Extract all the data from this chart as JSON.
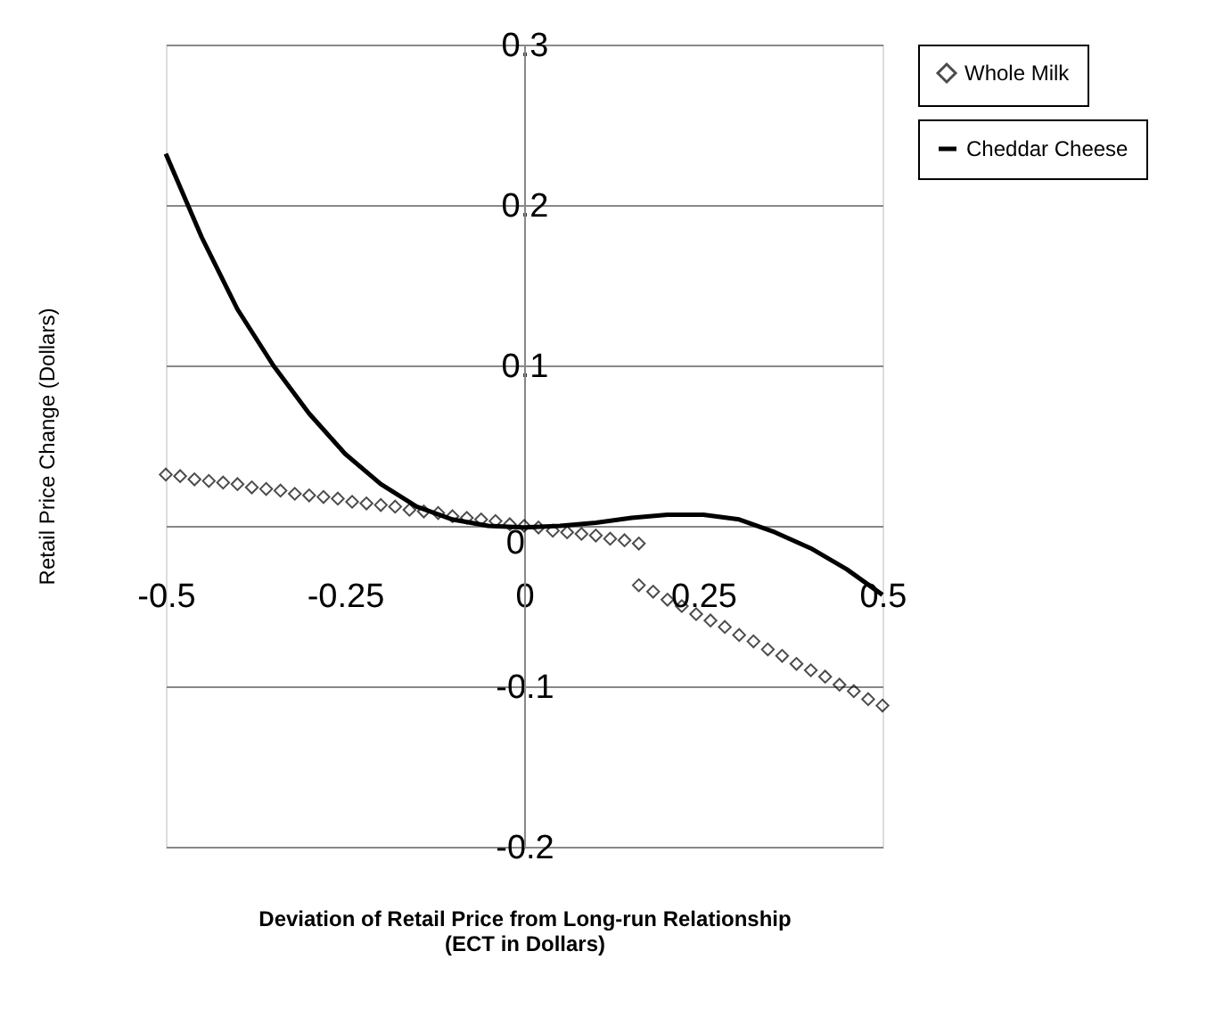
{
  "chart_data": {
    "type": "scatter",
    "xlabel": "Deviation of Retail Price from Long-run Relationship\n(ECT in Dollars)",
    "ylabel": "Retail Price Change (Dollars)",
    "xlim": [
      -0.5,
      0.5
    ],
    "xticks": [
      -0.5,
      -0.25,
      0,
      0.25,
      0.5
    ],
    "ylim": [
      -0.2,
      0.3
    ],
    "yticks": [
      -0.2,
      -0.1,
      0,
      0.1,
      0.2,
      0.3
    ],
    "grid": "y",
    "legend": "right",
    "series": [
      {
        "name": "Whole Milk",
        "marker": "diamond",
        "color": "#000000",
        "x": [
          -0.5,
          -0.48,
          -0.46,
          -0.44,
          -0.42,
          -0.4,
          -0.38,
          -0.36,
          -0.34,
          -0.32,
          -0.3,
          -0.28,
          -0.26,
          -0.24,
          -0.22,
          -0.2,
          -0.18,
          -0.16,
          -0.14,
          -0.12,
          -0.1,
          -0.08,
          -0.06,
          -0.04,
          -0.02,
          0,
          0.02,
          0.04,
          0.06,
          0.08,
          0.1,
          0.12,
          0.14,
          0.16,
          0.16,
          0.18,
          0.2,
          0.22,
          0.24,
          0.26,
          0.28,
          0.3,
          0.32,
          0.34,
          0.36,
          0.38,
          0.4,
          0.42,
          0.44,
          0.46,
          0.48,
          0.5
        ],
        "values": [
          0.032,
          0.031,
          0.029,
          0.028,
          0.027,
          0.026,
          0.024,
          0.023,
          0.022,
          0.02,
          0.019,
          0.018,
          0.017,
          0.015,
          0.014,
          0.013,
          0.012,
          0.01,
          0.009,
          0.008,
          0.006,
          0.005,
          0.004,
          0.003,
          0.001,
          0,
          -0.001,
          -0.003,
          -0.004,
          -0.005,
          -0.006,
          -0.008,
          -0.009,
          -0.011,
          -0.037,
          -0.041,
          -0.046,
          -0.05,
          -0.055,
          -0.059,
          -0.063,
          -0.068,
          -0.072,
          -0.077,
          -0.081,
          -0.086,
          -0.09,
          -0.094,
          -0.099,
          -0.103,
          -0.108,
          -0.112
        ]
      },
      {
        "name": "Cheddar Cheese",
        "type": "line",
        "marker": "none",
        "line_style": "solid",
        "color": "#000000",
        "x": [
          -0.5,
          -0.45,
          -0.4,
          -0.35,
          -0.3,
          -0.25,
          -0.2,
          -0.15,
          -0.1,
          -0.05,
          0,
          0.05,
          0.1,
          0.15,
          0.2,
          0.25,
          0.3,
          0.35,
          0.4,
          0.45,
          0.5
        ],
        "values": [
          0.232,
          0.18,
          0.135,
          0.1,
          0.07,
          0.045,
          0.026,
          0.012,
          0.004,
          0.0,
          -0.001,
          0.0,
          0.002,
          0.005,
          0.007,
          0.007,
          0.004,
          -0.004,
          -0.014,
          -0.027,
          -0.043
        ]
      }
    ]
  }
}
